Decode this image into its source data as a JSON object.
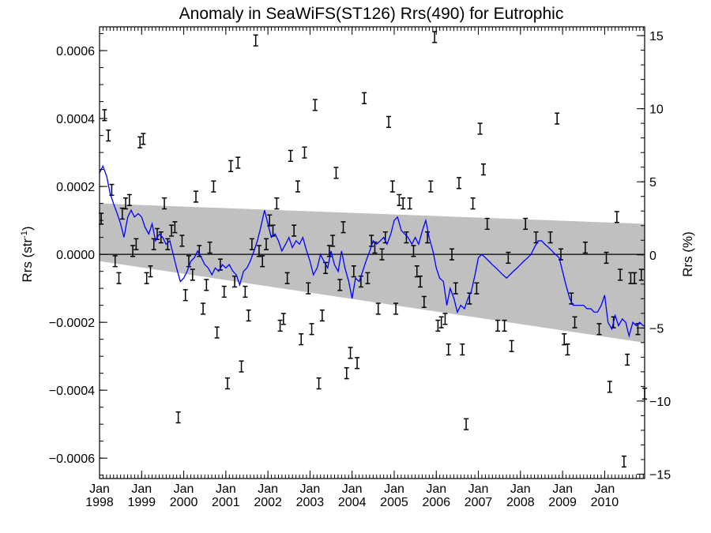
{
  "chart_data": {
    "type": "scatter",
    "title": "Anomaly in SeaWiFS(ST126) Rrs(490) for Eutrophic",
    "ylabel": "Rrs (str",
    "ylabel_sup": "-1",
    "ylabel_close": ")",
    "y2label": "Rrs (%)",
    "xlim": [
      1998.0,
      2010.95
    ],
    "ylim": [
      -0.00066,
      0.00067
    ],
    "y2lim": [
      -15.3,
      15.6
    ],
    "yticks": [
      {
        "value": 0.0006,
        "label": "0.0006"
      },
      {
        "value": 0.0004,
        "label": "0.0004"
      },
      {
        "value": 0.0002,
        "label": "0.0002"
      },
      {
        "value": 0.0,
        "label": "0.0000"
      },
      {
        "value": -0.0002,
        "label": "−0.0002"
      },
      {
        "value": -0.0004,
        "label": "−0.0004"
      },
      {
        "value": -0.0006,
        "label": "−0.0006"
      }
    ],
    "y2ticks": [
      {
        "value": 15,
        "label": "15"
      },
      {
        "value": 10,
        "label": "10"
      },
      {
        "value": 5,
        "label": "5"
      },
      {
        "value": 0,
        "label": "0"
      },
      {
        "value": -5,
        "label": "−5"
      },
      {
        "value": -10,
        "label": "−10"
      },
      {
        "value": -15,
        "label": "−15"
      }
    ],
    "xticks": [
      {
        "value": 1998,
        "month": "Jan",
        "year": "1998"
      },
      {
        "value": 1999,
        "month": "Jan",
        "year": "1999"
      },
      {
        "value": 2000,
        "month": "Jan",
        "year": "2000"
      },
      {
        "value": 2001,
        "month": "Jan",
        "year": "2001"
      },
      {
        "value": 2002,
        "month": "Jan",
        "year": "2002"
      },
      {
        "value": 2003,
        "month": "Jan",
        "year": "2003"
      },
      {
        "value": 2004,
        "month": "Jan",
        "year": "2004"
      },
      {
        "value": 2005,
        "month": "Jan",
        "year": "2005"
      },
      {
        "value": 2006,
        "month": "Jan",
        "year": "2006"
      },
      {
        "value": 2007,
        "month": "Jan",
        "year": "2007"
      },
      {
        "value": 2008,
        "month": "Jan",
        "year": "2008"
      },
      {
        "value": 2009,
        "month": "Jan",
        "year": "2009"
      },
      {
        "value": 2010,
        "month": "Jan",
        "year": "2010"
      }
    ],
    "band": {
      "color": "#c0c0c0",
      "upper": [
        [
          1998.0,
          0.00015
        ],
        [
          2010.95,
          9e-05
        ]
      ],
      "lower": [
        [
          1998.0,
          -2e-05
        ],
        [
          2010.95,
          -0.00026
        ]
      ]
    },
    "zero_line": 0.0,
    "line_color": "#0000ff",
    "point_color": "#000000",
    "errorbar_halfwidth": 1.6e-05,
    "points": [
      [
        1998.04,
        0.000105
      ],
      [
        1998.12,
        0.00041
      ],
      [
        1998.21,
        0.00035
      ],
      [
        1998.29,
        0.00019
      ],
      [
        1998.37,
        -2e-05
      ],
      [
        1998.46,
        -7e-05
      ],
      [
        1998.54,
        0.00012
      ],
      [
        1998.62,
        0.00015
      ],
      [
        1998.71,
        0.00016
      ],
      [
        1998.79,
        1e-05
      ],
      [
        1998.87,
        3e-05
      ],
      [
        1998.96,
        0.00033
      ],
      [
        1999.04,
        0.00034
      ],
      [
        1999.12,
        -7e-05
      ],
      [
        1999.21,
        -5e-05
      ],
      [
        1999.29,
        3e-05
      ],
      [
        1999.37,
        6e-05
      ],
      [
        1999.46,
        5e-05
      ],
      [
        1999.54,
        0.00015
      ],
      [
        1999.62,
        3e-05
      ],
      [
        1999.71,
        7e-05
      ],
      [
        1999.79,
        8e-05
      ],
      [
        1999.87,
        -0.00048
      ],
      [
        1999.96,
        4e-05
      ],
      [
        2000.04,
        -0.00012
      ],
      [
        2000.12,
        -2e-05
      ],
      [
        2000.21,
        -6e-05
      ],
      [
        2000.29,
        0.00017
      ],
      [
        2000.37,
        1e-05
      ],
      [
        2000.46,
        -0.00016
      ],
      [
        2000.54,
        -9e-05
      ],
      [
        2000.62,
        2e-05
      ],
      [
        2000.71,
        0.0002
      ],
      [
        2000.79,
        -0.00023
      ],
      [
        2000.87,
        -3e-05
      ],
      [
        2000.96,
        -0.00011
      ],
      [
        2001.04,
        -0.00038
      ],
      [
        2001.12,
        0.00026
      ],
      [
        2001.21,
        -8e-05
      ],
      [
        2001.29,
        0.00027
      ],
      [
        2001.37,
        -0.00033
      ],
      [
        2001.46,
        -0.00011
      ],
      [
        2001.54,
        -0.00018
      ],
      [
        2001.62,
        3e-05
      ],
      [
        2001.71,
        0.00063
      ],
      [
        2001.79,
        1e-05
      ],
      [
        2001.87,
        -2e-05
      ],
      [
        2001.96,
        3e-05
      ],
      [
        2002.04,
        0.0001
      ],
      [
        2002.12,
        7e-05
      ],
      [
        2002.21,
        0.00015
      ],
      [
        2002.29,
        -0.00021
      ],
      [
        2002.37,
        -0.00019
      ],
      [
        2002.46,
        -7e-05
      ],
      [
        2002.54,
        0.00029
      ],
      [
        2002.62,
        7e-05
      ],
      [
        2002.71,
        0.0002
      ],
      [
        2002.79,
        -0.00025
      ],
      [
        2002.87,
        0.0003
      ],
      [
        2002.96,
        -0.0001
      ],
      [
        2003.04,
        -0.00022
      ],
      [
        2003.12,
        0.00044
      ],
      [
        2003.21,
        -0.00038
      ],
      [
        2003.29,
        -0.00018
      ],
      [
        2003.37,
        -4e-05
      ],
      [
        2003.46,
        1e-05
      ],
      [
        2003.54,
        4e-05
      ],
      [
        2003.62,
        0.00024
      ],
      [
        2003.71,
        -9e-05
      ],
      [
        2003.79,
        8e-05
      ],
      [
        2003.87,
        -0.00035
      ],
      [
        2003.96,
        -0.00029
      ],
      [
        2004.04,
        -5e-05
      ],
      [
        2004.12,
        -0.00032
      ],
      [
        2004.21,
        -8e-05
      ],
      [
        2004.29,
        0.00046
      ],
      [
        2004.37,
        -7e-05
      ],
      [
        2004.46,
        4e-05
      ],
      [
        2004.54,
        2e-05
      ],
      [
        2004.62,
        -0.00016
      ],
      [
        2004.71,
        0.0
      ],
      [
        2004.79,
        5e-05
      ],
      [
        2004.87,
        0.00039
      ],
      [
        2004.96,
        0.0002
      ],
      [
        2005.04,
        -0.00016
      ],
      [
        2005.12,
        0.00016
      ],
      [
        2005.21,
        0.00015
      ],
      [
        2005.29,
        5e-05
      ],
      [
        2005.37,
        0.00015
      ],
      [
        2005.46,
        1e-05
      ],
      [
        2005.54,
        -5e-05
      ],
      [
        2005.62,
        -8e-05
      ],
      [
        2005.71,
        -0.00014
      ],
      [
        2005.79,
        5e-05
      ],
      [
        2005.87,
        0.0002
      ],
      [
        2005.96,
        0.00064
      ],
      [
        2006.04,
        -0.00021
      ],
      [
        2006.12,
        -0.0002
      ],
      [
        2006.21,
        -0.00019
      ],
      [
        2006.29,
        -0.00028
      ],
      [
        2006.37,
        0.0
      ],
      [
        2006.46,
        -0.0001
      ],
      [
        2006.54,
        0.00021
      ],
      [
        2006.62,
        -0.00028
      ],
      [
        2006.71,
        -0.0005
      ],
      [
        2006.79,
        -0.00013
      ],
      [
        2006.87,
        0.00015
      ],
      [
        2006.96,
        -0.0001
      ],
      [
        2007.04,
        0.00037
      ],
      [
        2007.12,
        0.00025
      ],
      [
        2007.21,
        9e-05
      ],
      [
        2007.46,
        -0.00021
      ],
      [
        2007.62,
        -0.00021
      ],
      [
        2007.71,
        -1e-05
      ],
      [
        2007.79,
        -0.00027
      ],
      [
        2008.12,
        9e-05
      ],
      [
        2008.37,
        5e-05
      ],
      [
        2008.71,
        5e-05
      ],
      [
        2008.87,
        0.0004
      ],
      [
        2008.96,
        0.0
      ],
      [
        2009.04,
        -0.00025
      ],
      [
        2009.12,
        -0.00028
      ],
      [
        2009.21,
        -0.00013
      ],
      [
        2009.29,
        -0.0002
      ],
      [
        2009.54,
        2e-05
      ],
      [
        2009.87,
        -0.00022
      ],
      [
        2010.04,
        -1e-05
      ],
      [
        2010.12,
        -0.00039
      ],
      [
        2010.21,
        -0.0002
      ],
      [
        2010.29,
        0.00011
      ],
      [
        2010.37,
        -6e-05
      ],
      [
        2010.46,
        -0.00061
      ],
      [
        2010.54,
        -0.00031
      ],
      [
        2010.62,
        -7e-05
      ],
      [
        2010.71,
        -7e-05
      ],
      [
        2010.79,
        -0.00022
      ],
      [
        2010.87,
        -6e-05
      ],
      [
        2010.95,
        -0.00041
      ]
    ],
    "line": [
      [
        1998.0,
        0.00024
      ],
      [
        1998.08,
        0.00026
      ],
      [
        1998.17,
        0.00023
      ],
      [
        1998.25,
        0.00018
      ],
      [
        1998.33,
        0.00015
      ],
      [
        1998.42,
        0.00012
      ],
      [
        1998.5,
        9e-05
      ],
      [
        1998.58,
        5e-05
      ],
      [
        1998.67,
        0.00011
      ],
      [
        1998.75,
        0.00013
      ],
      [
        1998.83,
        0.00011
      ],
      [
        1998.92,
        0.00012
      ],
      [
        1999.0,
        0.00011
      ],
      [
        1999.08,
        8e-05
      ],
      [
        1999.17,
        6e-05
      ],
      [
        1999.25,
        9e-05
      ],
      [
        1999.33,
        4e-05
      ],
      [
        1999.42,
        6e-05
      ],
      [
        1999.5,
        5e-05
      ],
      [
        1999.58,
        3e-05
      ],
      [
        1999.67,
        4e-05
      ],
      [
        1999.75,
        0.0
      ],
      [
        1999.83,
        -4e-05
      ],
      [
        1999.92,
        -8e-05
      ],
      [
        2000.0,
        -7e-05
      ],
      [
        2000.08,
        -5e-05
      ],
      [
        2000.17,
        -2e-05
      ],
      [
        2000.25,
        -1e-05
      ],
      [
        2000.33,
        1e-05
      ],
      [
        2000.42,
        -1e-05
      ],
      [
        2000.5,
        -3e-05
      ],
      [
        2000.58,
        -4e-05
      ],
      [
        2000.67,
        -6e-05
      ],
      [
        2000.75,
        -4e-05
      ],
      [
        2000.83,
        -5e-05
      ],
      [
        2000.92,
        -3e-05
      ],
      [
        2001.0,
        -4e-05
      ],
      [
        2001.08,
        -3e-05
      ],
      [
        2001.17,
        -5e-05
      ],
      [
        2001.25,
        -6e-05
      ],
      [
        2001.33,
        -9e-05
      ],
      [
        2001.42,
        -5e-05
      ],
      [
        2001.5,
        -4e-05
      ],
      [
        2001.58,
        -2e-05
      ],
      [
        2001.67,
        1e-05
      ],
      [
        2001.75,
        4e-05
      ],
      [
        2001.83,
        8e-05
      ],
      [
        2001.92,
        0.00013
      ],
      [
        2002.0,
        9e-05
      ],
      [
        2002.08,
        5e-05
      ],
      [
        2002.17,
        6e-05
      ],
      [
        2002.25,
        4e-05
      ],
      [
        2002.33,
        1e-05
      ],
      [
        2002.42,
        3e-05
      ],
      [
        2002.5,
        5e-05
      ],
      [
        2002.58,
        2e-05
      ],
      [
        2002.67,
        4e-05
      ],
      [
        2002.75,
        3e-05
      ],
      [
        2002.83,
        5e-05
      ],
      [
        2002.92,
        1e-05
      ],
      [
        2003.0,
        -2e-05
      ],
      [
        2003.08,
        -6e-05
      ],
      [
        2003.17,
        -4e-05
      ],
      [
        2003.25,
        0.0
      ],
      [
        2003.33,
        -2e-05
      ],
      [
        2003.42,
        -4e-05
      ],
      [
        2003.5,
        1e-05
      ],
      [
        2003.58,
        -3e-05
      ],
      [
        2003.67,
        -5e-05
      ],
      [
        2003.75,
        1e-05
      ],
      [
        2003.83,
        -4e-05
      ],
      [
        2003.92,
        -8e-05
      ],
      [
        2004.0,
        -0.00013
      ],
      [
        2004.08,
        -7e-05
      ],
      [
        2004.17,
        -8e-05
      ],
      [
        2004.25,
        -5e-05
      ],
      [
        2004.33,
        -2e-05
      ],
      [
        2004.42,
        1e-05
      ],
      [
        2004.5,
        4e-05
      ],
      [
        2004.58,
        3e-05
      ],
      [
        2004.67,
        4e-05
      ],
      [
        2004.75,
        5e-05
      ],
      [
        2004.83,
        3e-05
      ],
      [
        2004.92,
        6e-05
      ],
      [
        2005.0,
        0.0001
      ],
      [
        2005.08,
        0.00011
      ],
      [
        2005.17,
        7e-05
      ],
      [
        2005.25,
        6e-05
      ],
      [
        2005.33,
        5e-05
      ],
      [
        2005.42,
        3e-05
      ],
      [
        2005.5,
        5e-05
      ],
      [
        2005.58,
        3e-05
      ],
      [
        2005.67,
        7e-05
      ],
      [
        2005.75,
        0.0001
      ],
      [
        2005.83,
        5e-05
      ],
      [
        2005.92,
        1e-05
      ],
      [
        2006.0,
        -4e-05
      ],
      [
        2006.08,
        -7e-05
      ],
      [
        2006.17,
        -8e-05
      ],
      [
        2006.25,
        -0.00015
      ],
      [
        2006.33,
        -0.0001
      ],
      [
        2006.42,
        -0.00013
      ],
      [
        2006.5,
        -0.00017
      ],
      [
        2006.58,
        -0.00015
      ],
      [
        2006.67,
        -0.00016
      ],
      [
        2006.75,
        -0.00013
      ],
      [
        2006.83,
        -0.00011
      ],
      [
        2006.92,
        -6e-05
      ],
      [
        2007.0,
        -1e-05
      ],
      [
        2007.08,
        0.0
      ],
      [
        2007.17,
        -1e-05
      ],
      [
        2007.25,
        -2e-05
      ],
      [
        2007.33,
        -3e-05
      ],
      [
        2007.42,
        -4e-05
      ],
      [
        2007.5,
        -5e-05
      ],
      [
        2007.58,
        -6e-05
      ],
      [
        2007.67,
        -7e-05
      ],
      [
        2007.75,
        -6e-05
      ],
      [
        2007.83,
        -5e-05
      ],
      [
        2007.92,
        -4e-05
      ],
      [
        2008.0,
        -3e-05
      ],
      [
        2008.08,
        -2e-05
      ],
      [
        2008.17,
        -1e-05
      ],
      [
        2008.25,
        0.0
      ],
      [
        2008.33,
        2e-05
      ],
      [
        2008.42,
        4e-05
      ],
      [
        2008.5,
        4e-05
      ],
      [
        2008.58,
        3e-05
      ],
      [
        2008.67,
        2e-05
      ],
      [
        2008.75,
        1e-05
      ],
      [
        2008.83,
        0.0
      ],
      [
        2008.92,
        -1e-05
      ],
      [
        2009.0,
        -5e-05
      ],
      [
        2009.08,
        -9e-05
      ],
      [
        2009.17,
        -0.00013
      ],
      [
        2009.25,
        -0.00015
      ],
      [
        2009.33,
        -0.00015
      ],
      [
        2009.42,
        -0.00015
      ],
      [
        2009.5,
        -0.00015
      ],
      [
        2009.58,
        -0.00016
      ],
      [
        2009.67,
        -0.00016
      ],
      [
        2009.75,
        -0.00017
      ],
      [
        2009.83,
        -0.00017
      ],
      [
        2009.92,
        -0.00015
      ],
      [
        2010.0,
        -0.00012
      ],
      [
        2010.08,
        -0.0002
      ],
      [
        2010.17,
        -0.00022
      ],
      [
        2010.25,
        -0.00018
      ],
      [
        2010.33,
        -0.00021
      ],
      [
        2010.42,
        -0.00019
      ],
      [
        2010.5,
        -0.0002
      ],
      [
        2010.58,
        -0.00024
      ],
      [
        2010.67,
        -0.0002
      ],
      [
        2010.75,
        -0.00021
      ],
      [
        2010.83,
        -0.0002
      ],
      [
        2010.92,
        -0.00021
      ],
      [
        2010.95,
        -0.00021
      ]
    ]
  }
}
